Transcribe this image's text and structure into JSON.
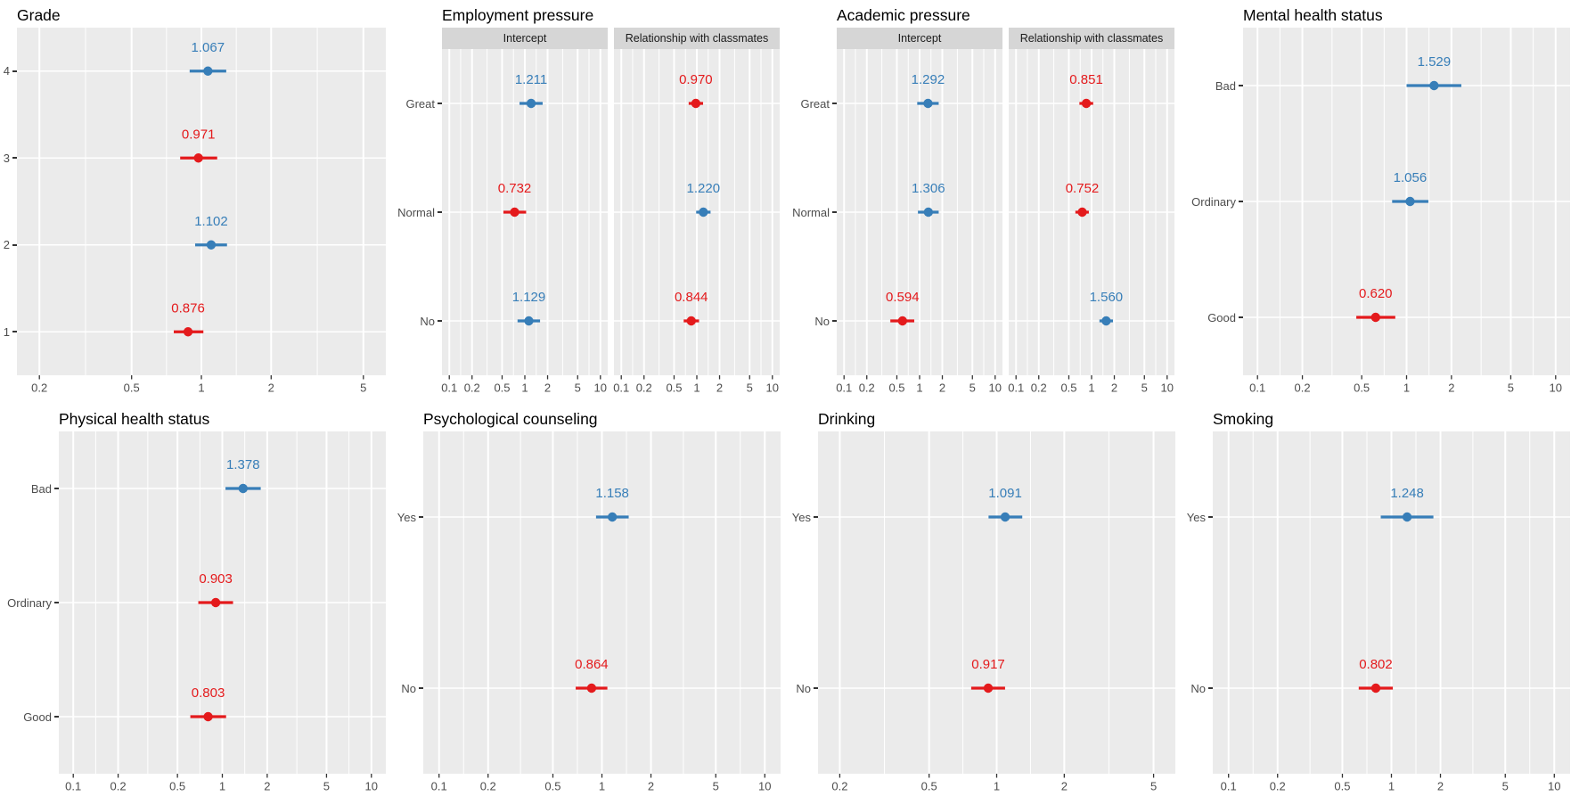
{
  "figure": {
    "rows": 2,
    "cols": 4,
    "background": "#ffffff",
    "description": "Grid of eight forest (dot-and-whisker) plots of odds ratios on log10 x scales"
  },
  "colors": {
    "blue": "#377eb8",
    "red": "#e41a1c",
    "panel_bg": "#ebebeb",
    "strip_bg": "#d6d6d6",
    "grid": "#ffffff",
    "axis_text": "#4d4d4d",
    "tick": "#333333",
    "title": "#000000"
  },
  "chart_data": [
    {
      "type": "scatter",
      "variant": "dot-whisker-forest",
      "title": "Grade",
      "x_scale": "log10",
      "grid": true,
      "x_ticks": [
        0.2,
        0.5,
        1,
        2,
        5
      ],
      "x_tick_labels": [
        "0.2",
        "0.5",
        "1",
        "2",
        "5"
      ],
      "categories": [
        "4",
        "3",
        "2",
        "1"
      ],
      "facets": [
        {
          "name": null,
          "points": [
            {
              "category": "4",
              "label": "1.067",
              "value": 1.067,
              "ci_low": 0.89,
              "ci_high": 1.28,
              "color": "blue"
            },
            {
              "category": "3",
              "label": "0.971",
              "value": 0.971,
              "ci_low": 0.81,
              "ci_high": 1.17,
              "color": "red"
            },
            {
              "category": "2",
              "label": "1.102",
              "value": 1.102,
              "ci_low": 0.94,
              "ci_high": 1.29,
              "color": "blue"
            },
            {
              "category": "1",
              "label": "0.876",
              "value": 0.876,
              "ci_low": 0.76,
              "ci_high": 1.02,
              "color": "red"
            }
          ]
        }
      ]
    },
    {
      "type": "scatter",
      "variant": "dot-whisker-forest",
      "title": "Employment pressure",
      "x_scale": "log10",
      "grid": true,
      "x_ticks": [
        0.1,
        0.2,
        0.5,
        1,
        2,
        5,
        10
      ],
      "x_tick_labels": [
        "0.1",
        "0.2",
        "0.5",
        "1",
        "2",
        "5",
        "10"
      ],
      "categories": [
        "Great",
        "Normal",
        "No"
      ],
      "facets": [
        {
          "name": "Intercept",
          "points": [
            {
              "category": "Great",
              "label": "1.211",
              "value": 1.211,
              "ci_low": 0.85,
              "ci_high": 1.72,
              "color": "blue"
            },
            {
              "category": "Normal",
              "label": "0.732",
              "value": 0.732,
              "ci_low": 0.52,
              "ci_high": 1.04,
              "color": "red"
            },
            {
              "category": "No",
              "label": "1.129",
              "value": 1.129,
              "ci_low": 0.8,
              "ci_high": 1.59,
              "color": "blue"
            }
          ]
        },
        {
          "name": "Relationship with classmates",
          "points": [
            {
              "category": "Great",
              "label": "0.970",
              "value": 0.97,
              "ci_low": 0.78,
              "ci_high": 1.21,
              "color": "red"
            },
            {
              "category": "Normal",
              "label": "1.220",
              "value": 1.22,
              "ci_low": 0.98,
              "ci_high": 1.52,
              "color": "blue"
            },
            {
              "category": "No",
              "label": "0.844",
              "value": 0.844,
              "ci_low": 0.67,
              "ci_high": 1.07,
              "color": "red"
            }
          ]
        }
      ]
    },
    {
      "type": "scatter",
      "variant": "dot-whisker-forest",
      "title": "Academic pressure",
      "x_scale": "log10",
      "grid": true,
      "x_ticks": [
        0.1,
        0.2,
        0.5,
        1,
        2,
        5,
        10
      ],
      "x_tick_labels": [
        "0.1",
        "0.2",
        "0.5",
        "1",
        "2",
        "5",
        "10"
      ],
      "categories": [
        "Great",
        "Normal",
        "No"
      ],
      "facets": [
        {
          "name": "Intercept",
          "points": [
            {
              "category": "Great",
              "label": "1.292",
              "value": 1.292,
              "ci_low": 0.93,
              "ci_high": 1.79,
              "color": "blue"
            },
            {
              "category": "Normal",
              "label": "1.306",
              "value": 1.306,
              "ci_low": 0.95,
              "ci_high": 1.79,
              "color": "blue"
            },
            {
              "category": "No",
              "label": "0.594",
              "value": 0.594,
              "ci_low": 0.41,
              "ci_high": 0.85,
              "color": "red"
            }
          ]
        },
        {
          "name": "Relationship with classmates",
          "points": [
            {
              "category": "Great",
              "label": "0.851",
              "value": 0.851,
              "ci_low": 0.69,
              "ci_high": 1.05,
              "color": "red"
            },
            {
              "category": "Normal",
              "label": "0.752",
              "value": 0.752,
              "ci_low": 0.61,
              "ci_high": 0.92,
              "color": "red"
            },
            {
              "category": "No",
              "label": "1.560",
              "value": 1.56,
              "ci_low": 1.27,
              "ci_high": 1.92,
              "color": "blue"
            }
          ]
        }
      ]
    },
    {
      "type": "scatter",
      "variant": "dot-whisker-forest",
      "title": "Mental health status",
      "x_scale": "log10",
      "grid": true,
      "x_ticks": [
        0.1,
        0.2,
        0.5,
        1,
        2,
        5,
        10
      ],
      "x_tick_labels": [
        "0.1",
        "0.2",
        "0.5",
        "1",
        "2",
        "5",
        "10"
      ],
      "categories": [
        "Bad",
        "Ordinary",
        "Good"
      ],
      "facets": [
        {
          "name": null,
          "points": [
            {
              "category": "Bad",
              "label": "1.529",
              "value": 1.529,
              "ci_low": 1.0,
              "ci_high": 2.33,
              "color": "blue"
            },
            {
              "category": "Ordinary",
              "label": "1.056",
              "value": 1.056,
              "ci_low": 0.8,
              "ci_high": 1.4,
              "color": "blue"
            },
            {
              "category": "Good",
              "label": "0.620",
              "value": 0.62,
              "ci_low": 0.46,
              "ci_high": 0.84,
              "color": "red"
            }
          ]
        }
      ]
    },
    {
      "type": "scatter",
      "variant": "dot-whisker-forest",
      "title": "Physical health status",
      "x_scale": "log10",
      "grid": true,
      "x_ticks": [
        0.1,
        0.2,
        0.5,
        1,
        2,
        5,
        10
      ],
      "x_tick_labels": [
        "0.1",
        "0.2",
        "0.5",
        "1",
        "2",
        "5",
        "10"
      ],
      "categories": [
        "Bad",
        "Ordinary",
        "Good"
      ],
      "facets": [
        {
          "name": null,
          "points": [
            {
              "category": "Bad",
              "label": "1.378",
              "value": 1.378,
              "ci_low": 1.05,
              "ci_high": 1.81,
              "color": "blue"
            },
            {
              "category": "Ordinary",
              "label": "0.903",
              "value": 0.903,
              "ci_low": 0.69,
              "ci_high": 1.18,
              "color": "red"
            },
            {
              "category": "Good",
              "label": "0.803",
              "value": 0.803,
              "ci_low": 0.61,
              "ci_high": 1.06,
              "color": "red"
            }
          ]
        }
      ]
    },
    {
      "type": "scatter",
      "variant": "dot-whisker-forest",
      "title": "Psychological counseling",
      "x_scale": "log10",
      "grid": true,
      "x_ticks": [
        0.1,
        0.2,
        0.5,
        1,
        2,
        5,
        10
      ],
      "x_tick_labels": [
        "0.1",
        "0.2",
        "0.5",
        "1",
        "2",
        "5",
        "10"
      ],
      "categories": [
        "Yes",
        "No"
      ],
      "facets": [
        {
          "name": null,
          "points": [
            {
              "category": "Yes",
              "label": "1.158",
              "value": 1.158,
              "ci_low": 0.92,
              "ci_high": 1.46,
              "color": "blue"
            },
            {
              "category": "No",
              "label": "0.864",
              "value": 0.864,
              "ci_low": 0.69,
              "ci_high": 1.08,
              "color": "red"
            }
          ]
        }
      ]
    },
    {
      "type": "scatter",
      "variant": "dot-whisker-forest",
      "title": "Drinking",
      "x_scale": "log10",
      "grid": true,
      "x_ticks": [
        0.2,
        0.5,
        1,
        2,
        5
      ],
      "x_tick_labels": [
        "0.2",
        "0.5",
        "1",
        "2",
        "5"
      ],
      "categories": [
        "Yes",
        "No"
      ],
      "facets": [
        {
          "name": null,
          "points": [
            {
              "category": "Yes",
              "label": "1.091",
              "value": 1.091,
              "ci_low": 0.92,
              "ci_high": 1.3,
              "color": "blue"
            },
            {
              "category": "No",
              "label": "0.917",
              "value": 0.917,
              "ci_low": 0.77,
              "ci_high": 1.09,
              "color": "red"
            }
          ]
        }
      ]
    },
    {
      "type": "scatter",
      "variant": "dot-whisker-forest",
      "title": "Smoking",
      "x_scale": "log10",
      "grid": true,
      "x_ticks": [
        0.1,
        0.2,
        0.5,
        1,
        2,
        5,
        10
      ],
      "x_tick_labels": [
        "0.1",
        "0.2",
        "0.5",
        "1",
        "2",
        "5",
        "10"
      ],
      "categories": [
        "Yes",
        "No"
      ],
      "facets": [
        {
          "name": null,
          "points": [
            {
              "category": "Yes",
              "label": "1.248",
              "value": 1.248,
              "ci_low": 0.86,
              "ci_high": 1.81,
              "color": "blue"
            },
            {
              "category": "No",
              "label": "0.802",
              "value": 0.802,
              "ci_low": 0.63,
              "ci_high": 1.02,
              "color": "red"
            }
          ]
        }
      ]
    }
  ]
}
